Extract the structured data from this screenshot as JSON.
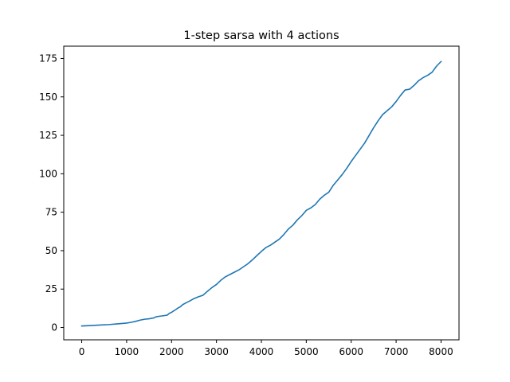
{
  "chart_data": {
    "type": "line",
    "title": "1-step sarsa with 4 actions",
    "xlabel": "",
    "ylabel": "",
    "xlim": [
      -400,
      8400
    ],
    "ylim": [
      -8,
      183
    ],
    "xticks": [
      0,
      1000,
      2000,
      3000,
      4000,
      5000,
      6000,
      7000,
      8000
    ],
    "yticks": [
      0,
      25,
      50,
      75,
      100,
      125,
      150,
      175
    ],
    "grid": false,
    "line_color": "#1f77b4",
    "series": [
      {
        "name": "",
        "x": [
          0,
          200,
          400,
          600,
          800,
          1000,
          1100,
          1200,
          1300,
          1400,
          1500,
          1600,
          1650,
          1700,
          1800,
          1900,
          1950,
          2000,
          2100,
          2150,
          2200,
          2250,
          2300,
          2400,
          2500,
          2600,
          2700,
          2800,
          2900,
          3000,
          3100,
          3200,
          3300,
          3400,
          3500,
          3600,
          3700,
          3800,
          3900,
          4000,
          4100,
          4200,
          4300,
          4400,
          4500,
          4600,
          4700,
          4800,
          4900,
          5000,
          5100,
          5200,
          5300,
          5400,
          5500,
          5600,
          5700,
          5800,
          5900,
          6000,
          6100,
          6200,
          6300,
          6400,
          6500,
          6600,
          6700,
          6800,
          6900,
          7000,
          7100,
          7200,
          7300,
          7400,
          7500,
          7600,
          7700,
          7800,
          7900,
          8000
        ],
        "y": [
          1,
          1.3,
          1.6,
          1.9,
          2.4,
          2.9,
          3.4,
          4.0,
          4.8,
          5.4,
          5.7,
          6.2,
          6.9,
          7.2,
          7.6,
          8.0,
          9.2,
          9.9,
          11.8,
          12.8,
          13.6,
          14.9,
          15.7,
          17.2,
          18.8,
          20.0,
          21.0,
          23.6,
          26.0,
          28.0,
          30.8,
          33.0,
          34.5,
          36.0,
          37.5,
          39.5,
          41.5,
          44.0,
          46.8,
          49.5,
          52.0,
          53.5,
          55.5,
          57.5,
          60.5,
          64.0,
          66.5,
          70.0,
          72.8,
          76.2,
          77.8,
          80.0,
          83.5,
          86.0,
          88.0,
          92.5,
          96.0,
          99.5,
          103.5,
          108.0,
          112.0,
          116.0,
          120.0,
          125.0,
          130.0,
          134.5,
          138.5,
          141.0,
          143.5,
          147.0,
          151.0,
          154.5,
          155.0,
          157.5,
          160.5,
          162.5,
          164.0,
          166.0,
          170.0,
          173.0
        ]
      }
    ]
  }
}
